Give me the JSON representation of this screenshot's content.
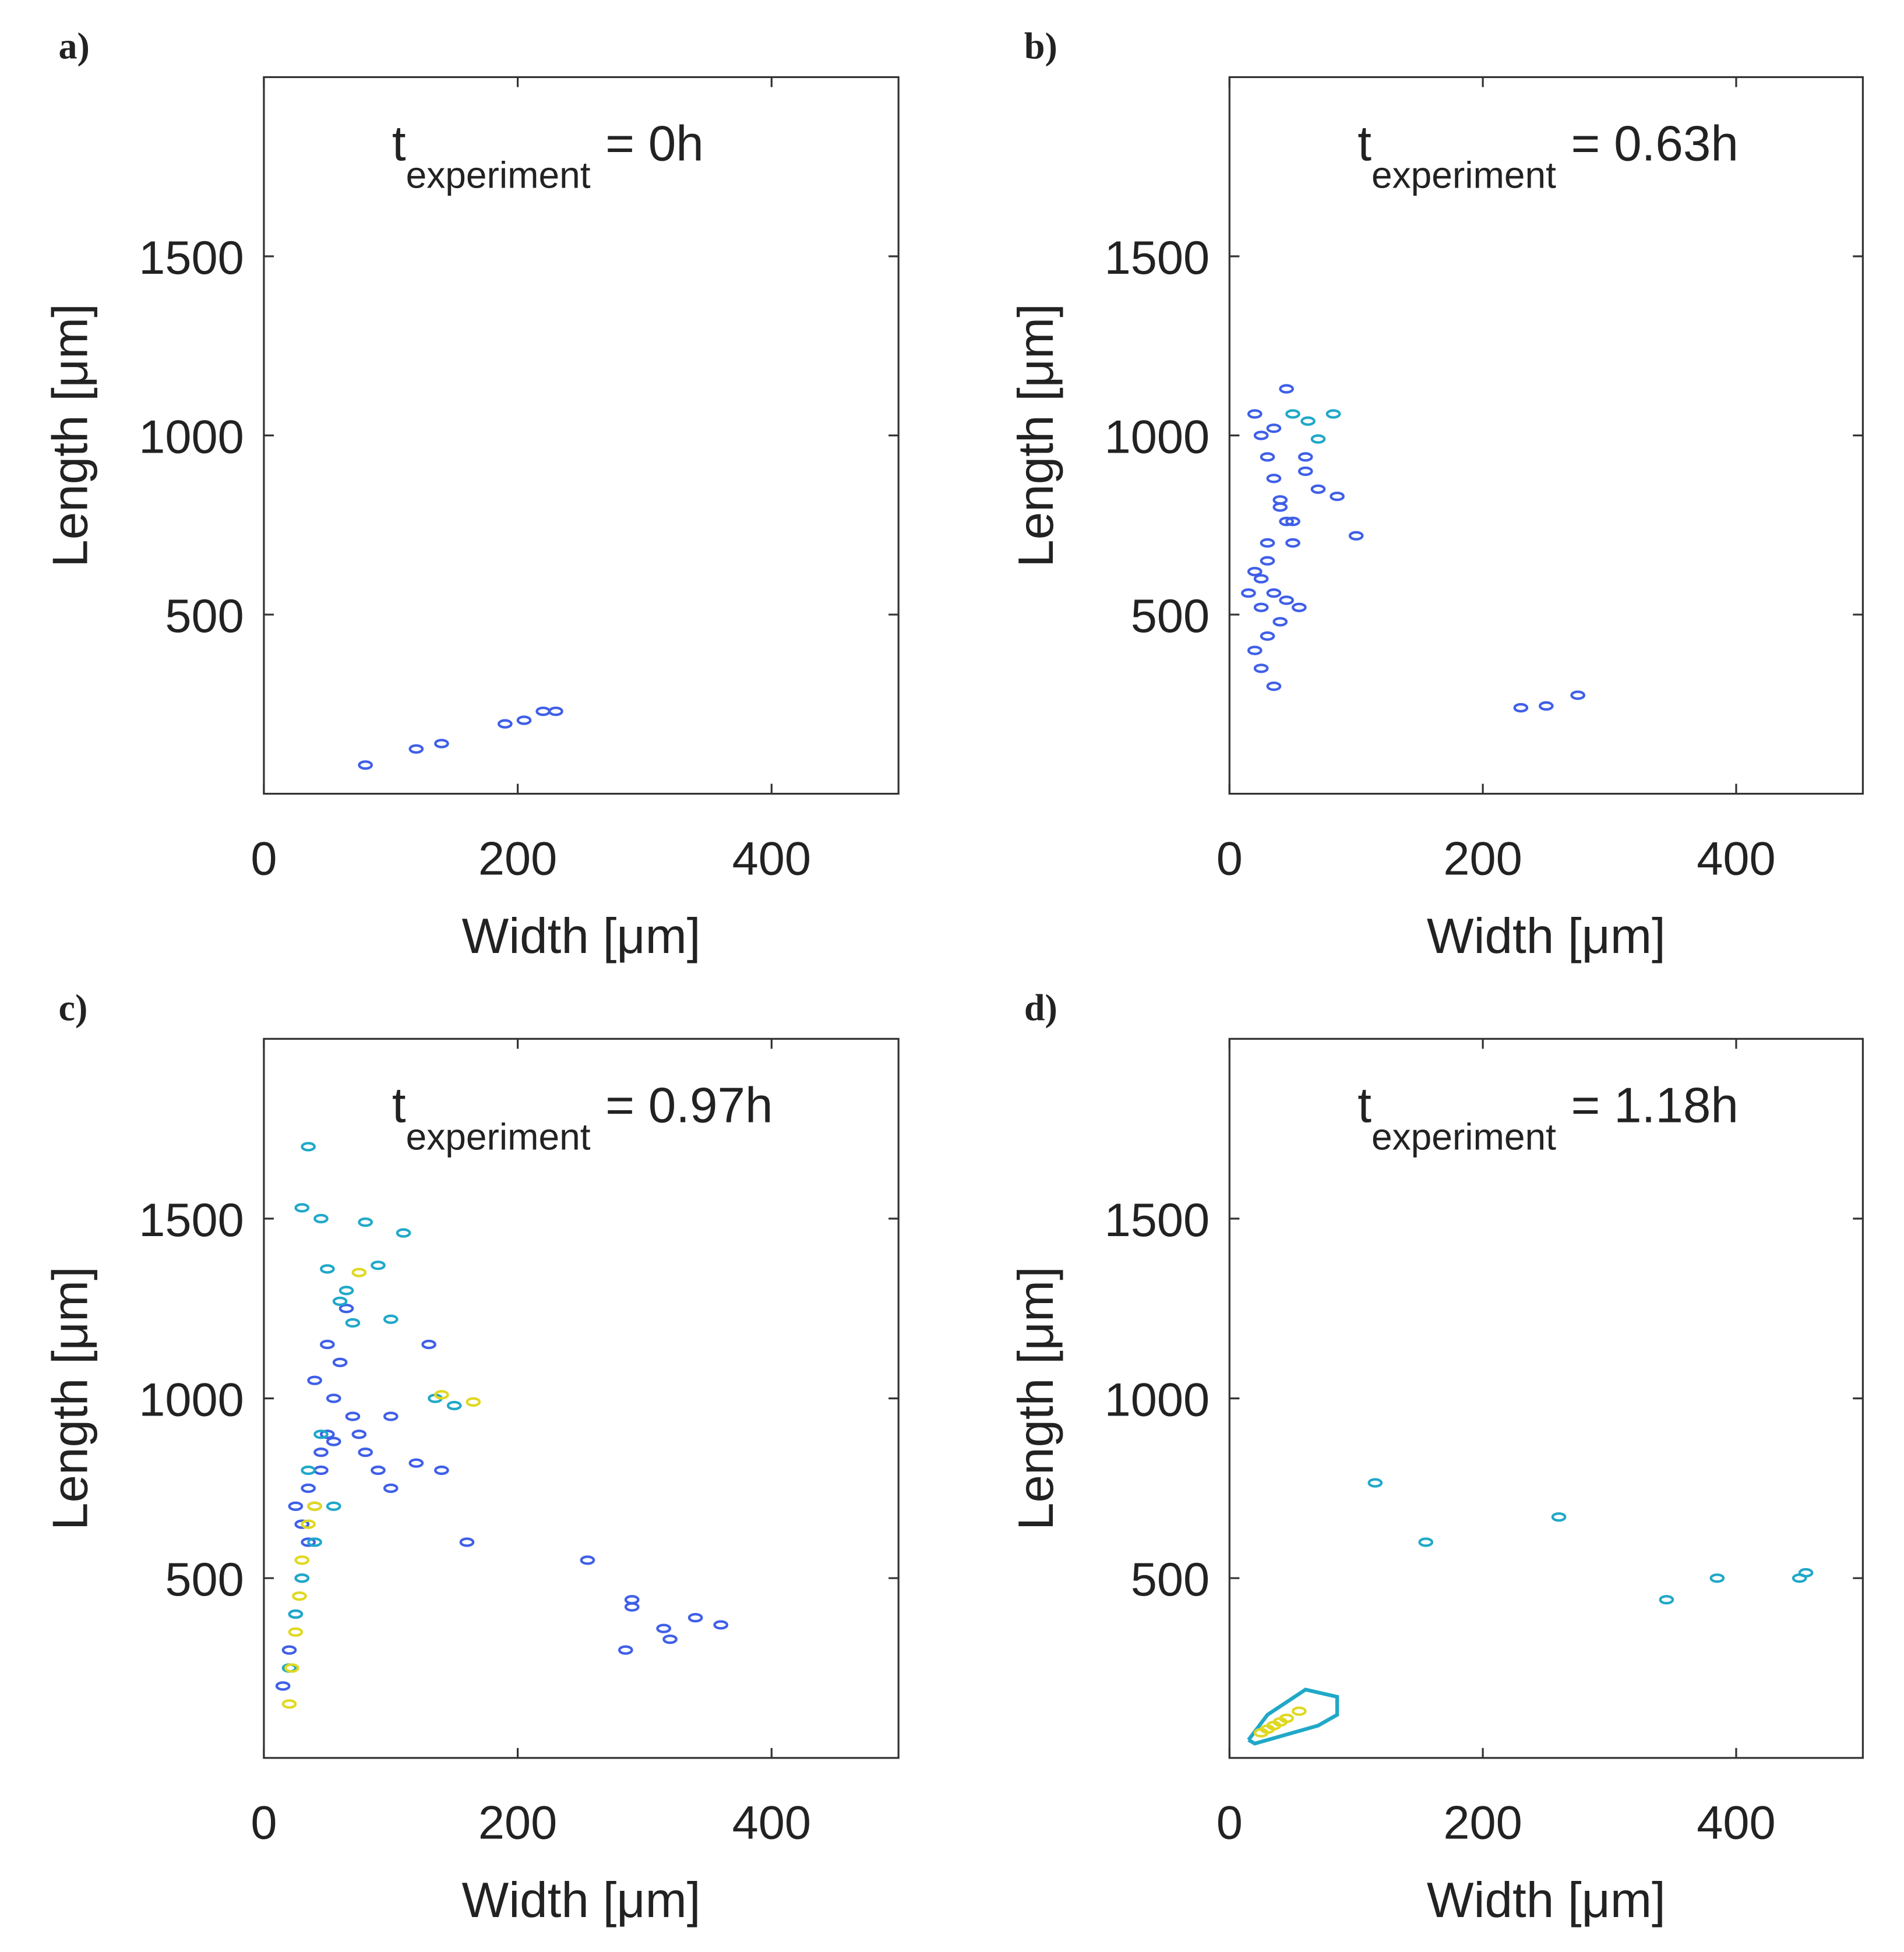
{
  "chart_data": [
    {
      "type": "contour",
      "panel_label": "a)",
      "title_t": "t",
      "title_sub": "experiment",
      "title_rest": "= 0h",
      "xlabel": "Width [μm]",
      "ylabel": "Length [μm]",
      "xlim": [
        0,
        500
      ],
      "ylim": [
        0,
        2000
      ],
      "xticks": [
        0,
        200,
        400
      ],
      "yticks": [
        500,
        1000,
        1500
      ],
      "series": [
        {
          "color": "#3f5fe8",
          "x": [
            80,
            120,
            140,
            190,
            205,
            220,
            230
          ],
          "y": [
            80,
            125,
            140,
            195,
            205,
            230,
            230
          ]
        }
      ]
    },
    {
      "type": "contour",
      "panel_label": "b)",
      "title_t": "t",
      "title_sub": "experiment",
      "title_rest": "= 0.63h",
      "xlabel": "Width [μm]",
      "ylabel": "Length [μm]",
      "xlim": [
        0,
        500
      ],
      "ylim": [
        0,
        2000
      ],
      "xticks": [
        0,
        200,
        400
      ],
      "yticks": [
        500,
        1000,
        1500
      ],
      "series": [
        {
          "color": "#3f5fe8",
          "x": [
            20,
            25,
            30,
            35,
            40,
            45,
            50,
            30,
            25,
            35,
            45,
            55,
            40,
            30,
            20,
            25,
            35,
            60,
            70,
            85,
            100,
            45,
            30,
            20,
            15,
            25,
            40,
            50,
            60,
            35,
            230,
            250,
            275
          ],
          "y": [
            1060,
            1000,
            940,
            880,
            820,
            760,
            700,
            650,
            600,
            560,
            540,
            520,
            480,
            440,
            400,
            350,
            300,
            900,
            850,
            830,
            720,
            1130,
            700,
            620,
            560,
            520,
            800,
            760,
            940,
            1020,
            240,
            245,
            275
          ]
        },
        {
          "color": "#20a8c8",
          "x": [
            50,
            62,
            70,
            82
          ],
          "y": [
            1060,
            1040,
            990,
            1060
          ]
        }
      ]
    },
    {
      "type": "contour",
      "panel_label": "c)",
      "title_t": "t",
      "title_sub": "experiment",
      "title_rest": "= 0.97h",
      "xlabel": "Width [μm]",
      "ylabel": "Length [μm]",
      "xlim": [
        0,
        500
      ],
      "ylim": [
        0,
        2000
      ],
      "xticks": [
        0,
        200,
        400
      ],
      "yticks": [
        500,
        1000,
        1500
      ],
      "series": [
        {
          "color": "#3f5fe8",
          "x": [
            15,
            20,
            25,
            30,
            35,
            40,
            45,
            50,
            55,
            60,
            70,
            80,
            90,
            100,
            120,
            140,
            160,
            255,
            290,
            290,
            315,
            320,
            340,
            360,
            285,
            40,
            50,
            65,
            25,
            30,
            35,
            45,
            55,
            75,
            100,
            130
          ],
          "y": [
            200,
            300,
            400,
            500,
            600,
            700,
            800,
            900,
            1000,
            1100,
            950,
            850,
            800,
            750,
            820,
            800,
            600,
            550,
            420,
            440,
            360,
            330,
            390,
            370,
            300,
            1050,
            1150,
            1250,
            700,
            650,
            750,
            850,
            880,
            900,
            950,
            1150
          ]
        },
        {
          "color": "#20a8c8",
          "x": [
            30,
            35,
            45,
            50,
            60,
            65,
            70,
            80,
            90,
            100,
            110,
            40,
            55,
            25,
            35,
            135,
            150,
            20,
            30,
            45
          ],
          "y": [
            1530,
            1700,
            1500,
            1360,
            1270,
            1300,
            1210,
            1490,
            1370,
            1220,
            1460,
            600,
            700,
            400,
            800,
            1000,
            980,
            250,
            500,
            900
          ]
        },
        {
          "color": "#e0d820",
          "x": [
            20,
            22,
            25,
            28,
            30,
            35,
            40,
            165,
            140,
            75
          ],
          "y": [
            150,
            250,
            350,
            450,
            550,
            650,
            700,
            990,
            1010,
            1350
          ]
        }
      ]
    },
    {
      "type": "contour",
      "panel_label": "d)",
      "title_t": "t",
      "title_sub": "experiment",
      "title_rest": "= 1.18h",
      "xlabel": "Width [μm]",
      "ylabel": "Length [μm]",
      "xlim": [
        0,
        500
      ],
      "ylim": [
        0,
        2000
      ],
      "xticks": [
        0,
        200,
        400
      ],
      "yticks": [
        500,
        1000,
        1500
      ],
      "series": [
        {
          "color": "#20a8c8",
          "x": [
            115,
            155,
            260,
            345,
            385,
            450,
            455
          ],
          "y": [
            765,
            600,
            670,
            440,
            500,
            500,
            515
          ]
        },
        {
          "color": "#20a8c8",
          "kind": "line",
          "x": [
            15,
            30,
            60,
            85,
            85,
            70,
            40,
            20,
            15
          ],
          "y": [
            50,
            120,
            190,
            170,
            120,
            90,
            60,
            40,
            50
          ]
        },
        {
          "color": "#e0d820",
          "x": [
            25,
            35,
            45,
            55,
            30,
            40
          ],
          "y": [
            70,
            90,
            110,
            130,
            80,
            100
          ]
        }
      ]
    }
  ]
}
